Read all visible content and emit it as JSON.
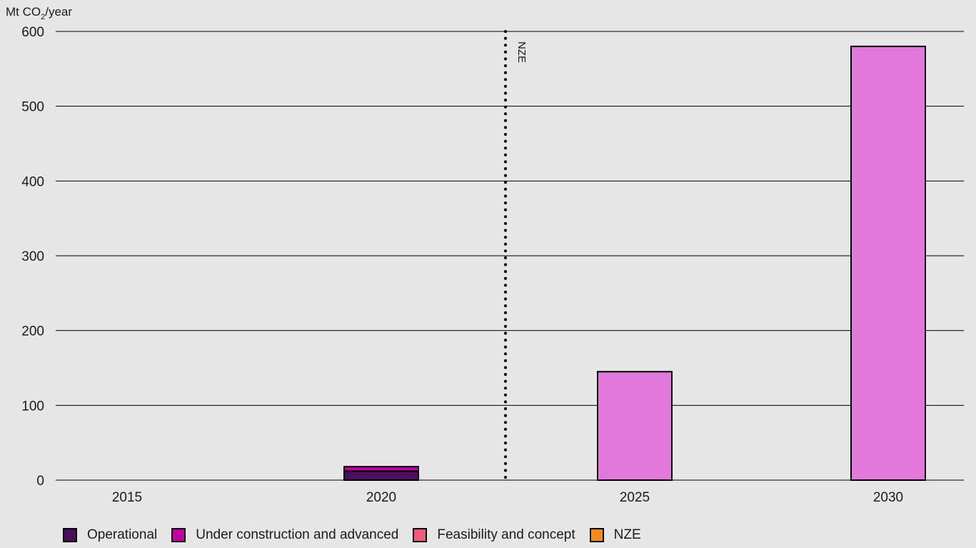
{
  "chart_data": {
    "type": "bar",
    "stacked": true,
    "ylabel": "Mt CO",
    "ylabel_subscript": "2",
    "ylabel_suffix": "/year",
    "ylim": [
      0,
      600
    ],
    "yticks": [
      0,
      100,
      200,
      300,
      400,
      500,
      600
    ],
    "categories": [
      "2015",
      "2020",
      "2025",
      "2030"
    ],
    "grid": true,
    "series": [
      {
        "name": "Operational",
        "color": "#4b0f5e",
        "values": [
          0,
          12,
          0,
          0
        ]
      },
      {
        "name": "Under construction and advanced",
        "color": "#c000a0",
        "values": [
          0,
          6,
          0,
          0
        ]
      },
      {
        "name": "Feasibility and concept",
        "color": "#ef5a7e",
        "values": [
          0,
          0,
          0,
          0
        ]
      },
      {
        "name": "NZE",
        "color": "#f78a1e",
        "values": [
          0,
          0,
          0,
          0
        ]
      }
    ],
    "nze_overlay": {
      "color": "#e277dc",
      "values": [
        null,
        null,
        145,
        580
      ]
    },
    "reference_line": {
      "label": "NZE",
      "style": "dotted",
      "position_between": [
        "2020",
        "2025"
      ]
    }
  }
}
